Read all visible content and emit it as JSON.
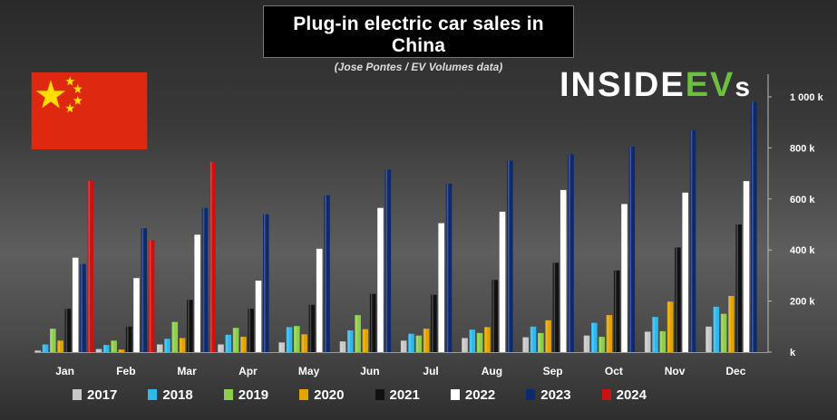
{
  "header": {
    "title": "Plug-in electric car sales in China",
    "subtitle": "(Jose Pontes / EV Volumes data)"
  },
  "brand": {
    "part1": "INSIDE",
    "part2": "EV",
    "part3": "s"
  },
  "colors": {
    "2017": "#c8c8c8",
    "2018": "#2fb8ec",
    "2019": "#8dcf4a",
    "2020": "#e3a400",
    "2021": "#111111",
    "2022": "#ffffff",
    "2023": "#0e2a6e",
    "2024": "#cc1111"
  },
  "chart_data": {
    "type": "bar",
    "title": "Plug-in electric car sales in China",
    "categories": [
      "Jan",
      "Feb",
      "Mar",
      "Apr",
      "May",
      "Jun",
      "Jul",
      "Aug",
      "Sep",
      "Oct",
      "Nov",
      "Dec"
    ],
    "yticks": [
      "k",
      "200 k",
      "400 k",
      "600 k",
      "800 k",
      "1 000 k"
    ],
    "ylim": [
      0,
      1000
    ],
    "y_axis_position": "right",
    "legend_position": "bottom",
    "grid": false,
    "series": [
      {
        "name": "2017",
        "values": [
          6,
          12,
          30,
          30,
          38,
          42,
          45,
          55,
          58,
          65,
          80,
          100
        ]
      },
      {
        "name": "2018",
        "values": [
          30,
          28,
          52,
          68,
          98,
          85,
          72,
          88,
          100,
          115,
          138,
          178
        ]
      },
      {
        "name": "2019",
        "values": [
          92,
          45,
          118,
          95,
          102,
          145,
          65,
          75,
          75,
          60,
          82,
          150
        ]
      },
      {
        "name": "2020",
        "values": [
          45,
          10,
          55,
          60,
          70,
          90,
          92,
          98,
          125,
          145,
          198,
          220
        ]
      },
      {
        "name": "2021",
        "values": [
          170,
          100,
          205,
          170,
          185,
          228,
          225,
          283,
          350,
          320,
          410,
          500
        ]
      },
      {
        "name": "2022",
        "values": [
          370,
          290,
          460,
          280,
          405,
          565,
          505,
          550,
          635,
          580,
          625,
          670
        ]
      },
      {
        "name": "2023",
        "values": [
          345,
          485,
          565,
          540,
          615,
          715,
          660,
          750,
          775,
          805,
          870,
          980
        ]
      },
      {
        "name": "2024",
        "values": [
          670,
          440,
          745,
          null,
          null,
          null,
          null,
          null,
          null,
          null,
          null,
          null
        ]
      }
    ]
  }
}
